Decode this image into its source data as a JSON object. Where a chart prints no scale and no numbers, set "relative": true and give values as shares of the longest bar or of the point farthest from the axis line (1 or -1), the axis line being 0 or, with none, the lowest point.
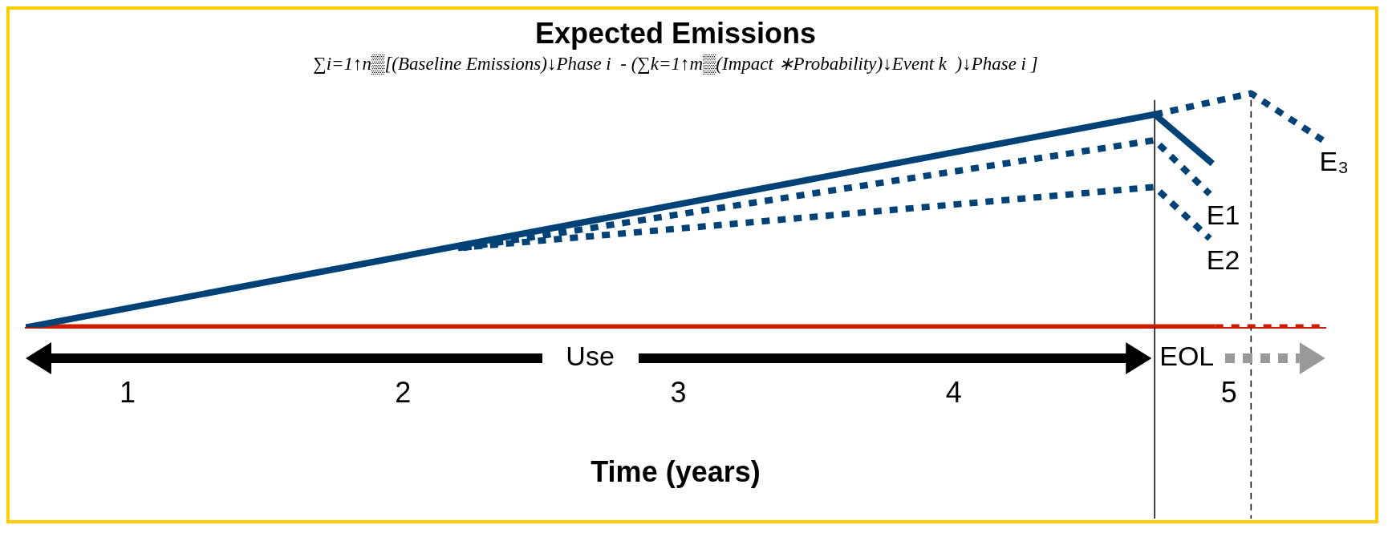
{
  "chart_data": {
    "type": "line",
    "title": "Expected Emissions",
    "subtitle": "∑i=1↑n▒[(Baseline Emissions)↓Phase i  - (∑k=1↑m▒(Impact ∗Probability)↓Event k  )↓Phase i ]",
    "xlabel": "Time (years)",
    "relative": true,
    "xlim": [
      0.63,
      5.35
    ],
    "xticks": [
      1,
      2,
      3,
      4,
      5
    ],
    "grid": false,
    "legend": false,
    "marker": "none",
    "series": [
      {
        "color": "#004276",
        "line_style": "solid",
        "x": [
          0.63,
          4.73,
          4.94
        ],
        "values": [
          0,
          0.91,
          0.7
        ]
      },
      {
        "name": "E1",
        "color": "#004276",
        "line_style": "dotted",
        "x": [
          2.22,
          4.73,
          4.93
        ],
        "values": [
          0.34,
          0.8,
          0.57
        ]
      },
      {
        "name": "E2",
        "color": "#004276",
        "line_style": "dotted",
        "x": [
          2.2,
          4.73,
          4.93
        ],
        "values": [
          0.34,
          0.6,
          0.38
        ]
      },
      {
        "name": "E₃",
        "color": "#004276",
        "line_style": "dotted",
        "x": [
          4.73,
          5.08,
          5.34
        ],
        "values": [
          0.91,
          1,
          0.8
        ]
      },
      {
        "color": "#cc1c00",
        "line_style": "solid",
        "x": [
          0.63,
          4.95
        ],
        "values": [
          0,
          0
        ]
      },
      {
        "color": "#cc1c00",
        "line_style": "dotted",
        "x": [
          4.95,
          5.35
        ],
        "values": [
          0,
          0
        ]
      }
    ],
    "ref_lines": [
      {
        "axis": "x",
        "value": 4.73,
        "color": "#000000",
        "line_style": "solid"
      },
      {
        "axis": "x",
        "value": 5.08,
        "color": "#000000",
        "line_style": "dashed"
      }
    ],
    "annotations": [
      "Use",
      "EOL"
    ]
  }
}
